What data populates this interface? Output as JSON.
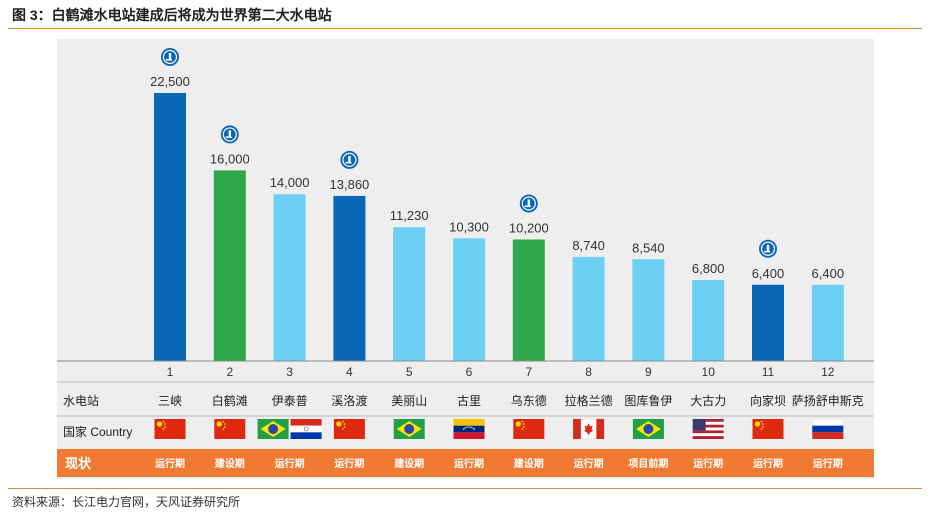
{
  "figure": {
    "title": "图 3：白鹤滩水电站建成后将成为世界第二大水电站",
    "source": "资料来源：长江电力官网，天风证券研究所"
  },
  "colors": {
    "dark_blue": "#0a66b7",
    "green": "#2ea84a",
    "light_blue": "#6ecff5",
    "status_bar": "#f07a32",
    "rule": "#e08a3c"
  },
  "table": {
    "station_header": "水电站",
    "country_header": "国家 Country",
    "status_header": "现状"
  },
  "chart_data": {
    "type": "bar",
    "ylim": [
      0,
      22500
    ],
    "grid": false,
    "categories": [
      "1",
      "2",
      "3",
      "4",
      "5",
      "6",
      "7",
      "8",
      "9",
      "10",
      "11",
      "12"
    ],
    "values": [
      22500,
      16000,
      14000,
      13860,
      11230,
      10300,
      10200,
      8740,
      8540,
      6800,
      6400,
      6400
    ],
    "value_labels": [
      "22,500",
      "16,000",
      "14,000",
      "13,860",
      "11,230",
      "10,300",
      "10,200",
      "8,740",
      "8,540",
      "6,800",
      "6,400",
      "6,400"
    ],
    "bar_colors": [
      "dark_blue",
      "green",
      "light_blue",
      "dark_blue",
      "light_blue",
      "light_blue",
      "green",
      "light_blue",
      "light_blue",
      "light_blue",
      "dark_blue",
      "light_blue"
    ],
    "logo_on": [
      true,
      true,
      false,
      true,
      false,
      false,
      true,
      false,
      false,
      false,
      true,
      false
    ],
    "stations": [
      "三峡",
      "白鹤滩",
      "伊泰普",
      "溪洛渡",
      "美丽山",
      "古里",
      "乌东德",
      "拉格兰德",
      "图库鲁伊",
      "大古力",
      "向家坝",
      "萨扬舒申斯克"
    ],
    "flags": [
      [
        "china"
      ],
      [
        "china"
      ],
      [
        "brazil",
        "paraguay"
      ],
      [
        "china"
      ],
      [
        "brazil"
      ],
      [
        "venezuela"
      ],
      [
        "china"
      ],
      [
        "canada"
      ],
      [
        "brazil"
      ],
      [
        "usa"
      ],
      [
        "china"
      ],
      [
        "russia"
      ]
    ],
    "status": [
      "运行期",
      "建设期",
      "运行期",
      "运行期",
      "建设期",
      "运行期",
      "建设期",
      "运行期",
      "项目前期",
      "运行期",
      "运行期",
      "运行期"
    ]
  }
}
